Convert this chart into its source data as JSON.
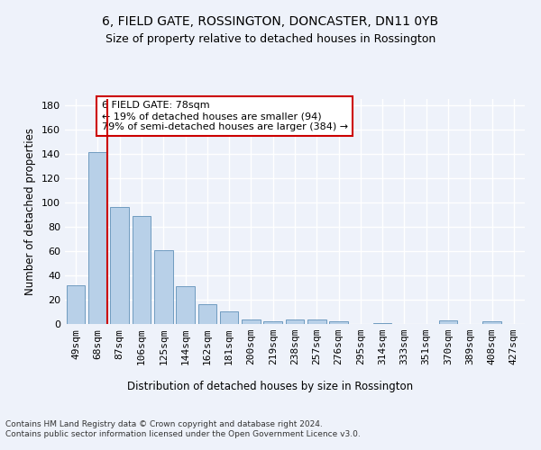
{
  "title1": "6, FIELD GATE, ROSSINGTON, DONCASTER, DN11 0YB",
  "title2": "Size of property relative to detached houses in Rossington",
  "xlabel": "Distribution of detached houses by size in Rossington",
  "ylabel": "Number of detached properties",
  "categories": [
    "49sqm",
    "68sqm",
    "87sqm",
    "106sqm",
    "125sqm",
    "144sqm",
    "162sqm",
    "181sqm",
    "200sqm",
    "219sqm",
    "238sqm",
    "257sqm",
    "276sqm",
    "295sqm",
    "314sqm",
    "333sqm",
    "351sqm",
    "370sqm",
    "389sqm",
    "408sqm",
    "427sqm"
  ],
  "values": [
    32,
    141,
    96,
    89,
    61,
    31,
    16,
    10,
    4,
    2,
    4,
    4,
    2,
    0,
    1,
    0,
    0,
    3,
    0,
    2,
    0
  ],
  "bar_color": "#b8d0e8",
  "bar_edge_color": "#6090b8",
  "vline_color": "#cc0000",
  "annotation_text": "6 FIELD GATE: 78sqm\n← 19% of detached houses are smaller (94)\n79% of semi-detached houses are larger (384) →",
  "annotation_box_color": "#ffffff",
  "annotation_box_edge": "#cc0000",
  "ylim": [
    0,
    185
  ],
  "yticks": [
    0,
    20,
    40,
    60,
    80,
    100,
    120,
    140,
    160,
    180
  ],
  "background_color": "#eef2fa",
  "grid_color": "#ffffff",
  "footnote": "Contains HM Land Registry data © Crown copyright and database right 2024.\nContains public sector information licensed under the Open Government Licence v3.0."
}
